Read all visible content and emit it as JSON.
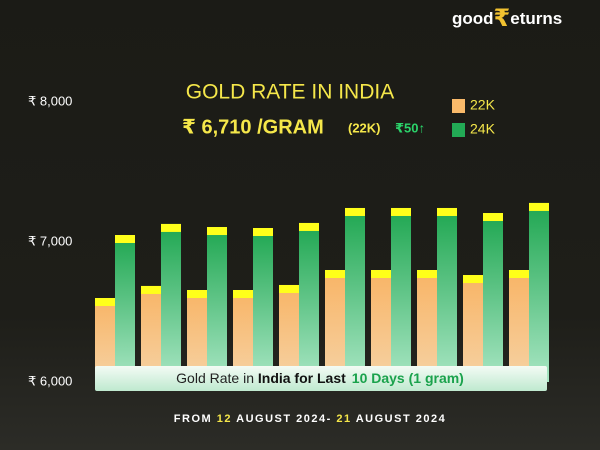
{
  "chart_data": {
    "type": "bar",
    "brand": [
      "good",
      "₹",
      "eturns"
    ],
    "title": "GOLD RATE IN INDIA",
    "subtitle": {
      "price": "₹ 6,710 /GRAM",
      "purity": "(22K)",
      "change": "₹50↑"
    },
    "categories": [
      null,
      null,
      null,
      null,
      null,
      null,
      null,
      null,
      null,
      null
    ],
    "series": [
      {
        "name": "22K",
        "color": "#f9b96a",
        "values": [
          6600,
          6686,
          6657,
          6657,
          6693,
          6800,
          6800,
          6800,
          6764,
          6800
        ]
      },
      {
        "name": "24K",
        "color": "#22aa55",
        "values": [
          7050,
          7129,
          7107,
          7100,
          7136,
          7243,
          7243,
          7243,
          7207,
          7279
        ]
      }
    ],
    "ylim": [
      6000,
      8000
    ],
    "yticks": [
      {
        "value": 6000,
        "label": "₹ 6,000"
      },
      {
        "value": 7000,
        "label": "₹ 7,000"
      },
      {
        "value": 8000,
        "label": "₹ 8,000"
      }
    ],
    "grid": false,
    "legend": "upper right",
    "banner": [
      "Gold Rate in ",
      "India for Last",
      "10 Days (1 gram)"
    ],
    "footer": [
      "FROM ",
      "12",
      " AUGUST 2024- ",
      "21",
      " AUGUST 2024"
    ]
  }
}
